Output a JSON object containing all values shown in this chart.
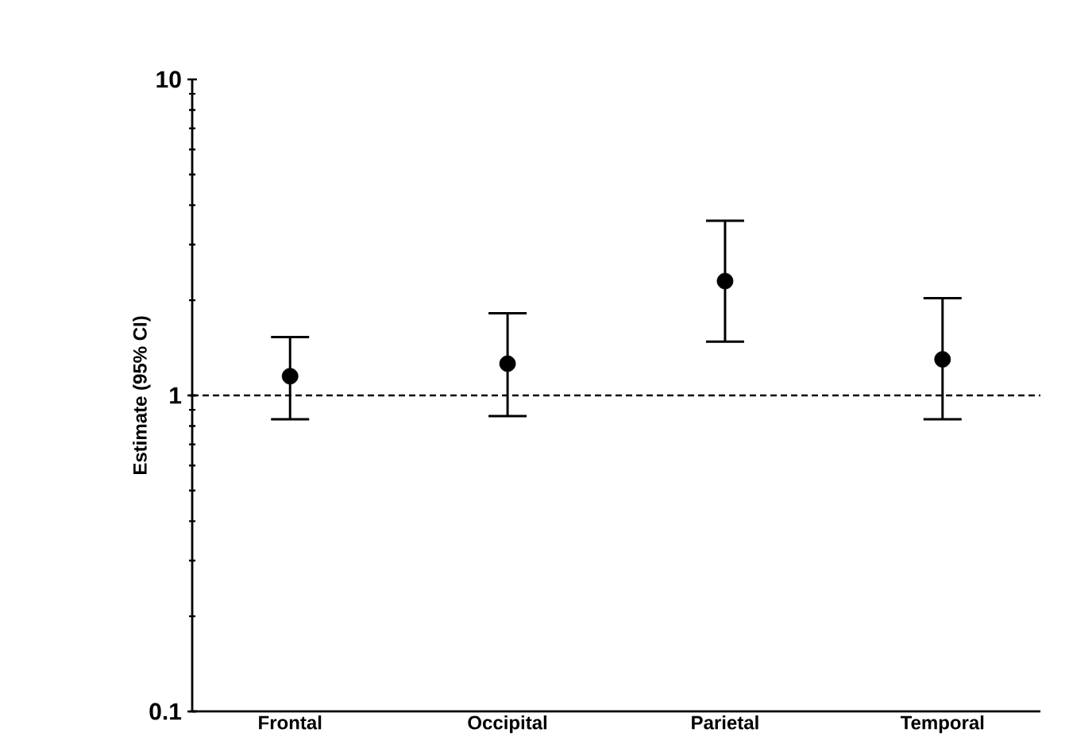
{
  "chart_data": {
    "type": "scatter",
    "ylabel": "Estimate (95% CI)",
    "categories": [
      "Frontal",
      "Occipital",
      "Parietal",
      "Temporal"
    ],
    "series": [
      {
        "color": "#000000",
        "values": [
          1.15,
          1.26,
          2.3,
          1.3
        ],
        "errors": [
          [
            0.84,
            1.53
          ],
          [
            0.86,
            1.82
          ],
          [
            1.48,
            3.57
          ],
          [
            0.84,
            2.03
          ]
        ]
      }
    ],
    "log": "y",
    "ylim": [
      0.1,
      10
    ],
    "yticks": [
      0.1,
      1,
      10
    ],
    "marker": "circle",
    "grid": false,
    "ref_lines": [
      {
        "axis": "y",
        "value": 1,
        "line_style": "dashed",
        "color": "#000000"
      }
    ]
  }
}
